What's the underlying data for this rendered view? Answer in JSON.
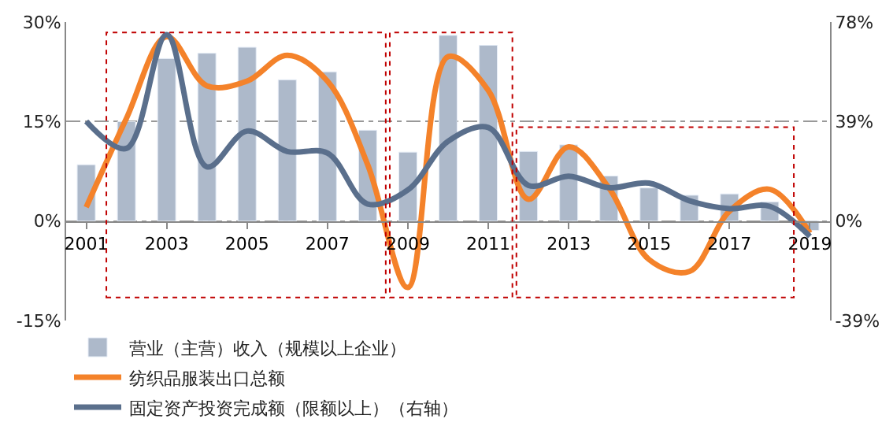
{
  "chart_data": {
    "type": "bar",
    "x": [
      2001,
      2002,
      2003,
      2004,
      2005,
      2006,
      2007,
      2008,
      2009,
      2010,
      2011,
      2012,
      2013,
      2014,
      2015,
      2016,
      2017,
      2018,
      2019
    ],
    "xlim": [
      2000.5,
      2019.5
    ],
    "xticks": [
      2001,
      2003,
      2005,
      2007,
      2009,
      2011,
      2013,
      2015,
      2017,
      2019
    ],
    "ylim": [
      -15,
      30
    ],
    "yticks": [
      {
        "value": -15,
        "label": "-15%"
      },
      {
        "value": 0,
        "label": "0%"
      },
      {
        "value": 15,
        "label": "15%"
      },
      {
        "value": 30,
        "label": "30%"
      }
    ],
    "y2lim": [
      -39,
      78
    ],
    "y2ticks": [
      {
        "value": -39,
        "label": "-39%"
      },
      {
        "value": 0,
        "label": "0%"
      },
      {
        "value": 39,
        "label": "39%"
      },
      {
        "value": 78,
        "label": "78%"
      }
    ],
    "grid": "y",
    "legend": "bottom",
    "marker": "none",
    "series": [
      {
        "name": "营业（主营）收入（规模以上企业）",
        "color": "#adb9ca",
        "values": [
          8.5,
          15.0,
          24.5,
          25.3,
          26.2,
          21.3,
          22.5,
          13.7,
          10.4,
          28.0,
          26.5,
          10.5,
          11.5,
          6.8,
          5.0,
          3.9,
          4.1,
          2.9,
          -1.4
        ]
      },
      {
        "name": "纺织品服装出口总额",
        "type": "line",
        "color": "#f4822a",
        "values": [
          2.1,
          15.5,
          27.8,
          20.4,
          21.1,
          25.0,
          21.1,
          8.5,
          -10.0,
          24.8,
          19.7,
          3.3,
          11.2,
          5.0,
          -5.8,
          -7.6,
          1.5,
          4.8,
          -1.8
        ]
      },
      {
        "name": "固定资产投资完成额（限额以上）（右轴）",
        "type": "line",
        "axis": "y2",
        "color": "#5a6f8c",
        "values": [
          39.1,
          28.5,
          73.1,
          21.3,
          35.3,
          27.3,
          26.7,
          6.7,
          12.2,
          31.3,
          36.7,
          14.0,
          17.6,
          13.1,
          14.9,
          8.0,
          4.9,
          5.8,
          -6.0
        ]
      }
    ]
  }
}
